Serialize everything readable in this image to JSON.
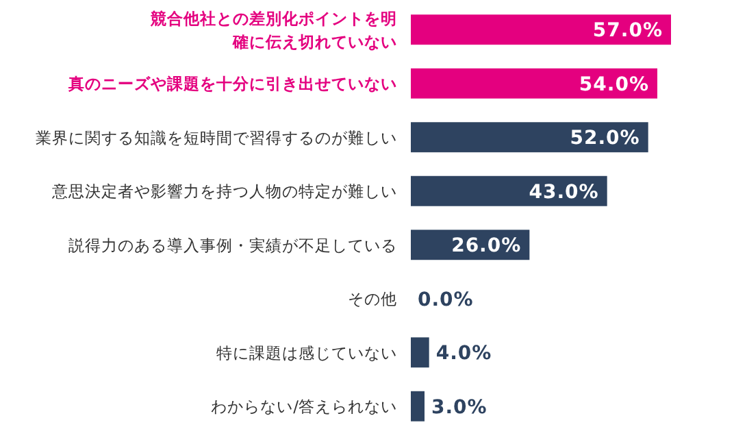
{
  "chart_data": {
    "type": "bar",
    "orientation": "horizontal",
    "categories": [
      "競合他社との差別化ポイントを明確に伝え切れていない",
      "真のニーズや課題を十分に引き出せていない",
      "業界に関する知識を短時間で習得するのが難しい",
      "意思決定者や影響力を持つ人物の特定が難しい",
      "説得力のある導入事例・実績が不足している",
      "その他",
      "特に課題は感じていない",
      "わからない/答えられない"
    ],
    "values": [
      57,
      54,
      52,
      43,
      26,
      0,
      4,
      3
    ],
    "colors": [
      "#e4007f",
      "#e4007f",
      "#2e4360",
      "#2e4360",
      "#2e4360",
      "#2e4360",
      "#2e4360",
      "#2e4360"
    ],
    "value_labels": [
      "57.0%",
      "54.0%",
      "52.0%",
      "43.0%",
      "26.0%",
      "0.0%",
      "4.0%",
      "3.0%"
    ]
  }
}
